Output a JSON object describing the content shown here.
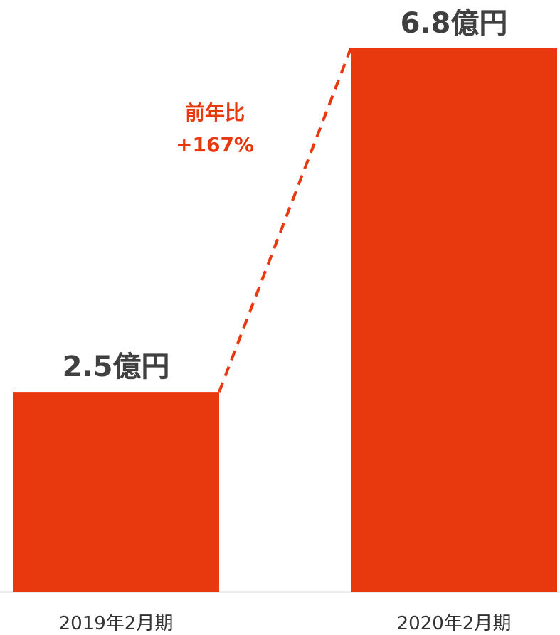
{
  "chart_data": {
    "type": "bar",
    "categories": [
      "2019年2月期",
      "2020年2月期"
    ],
    "values": [
      2.5,
      6.8
    ],
    "value_labels": [
      "2.5億円",
      "6.8億円"
    ],
    "unit": "億円",
    "growth_annotation": {
      "line1": "前年比",
      "line2": "+167%"
    },
    "colors": {
      "bar": "#E8380D",
      "annotation": "#E8380D",
      "axis": "#D9D9D9"
    },
    "ylim": [
      0,
      6.8
    ],
    "grid": false,
    "legend": "none"
  }
}
